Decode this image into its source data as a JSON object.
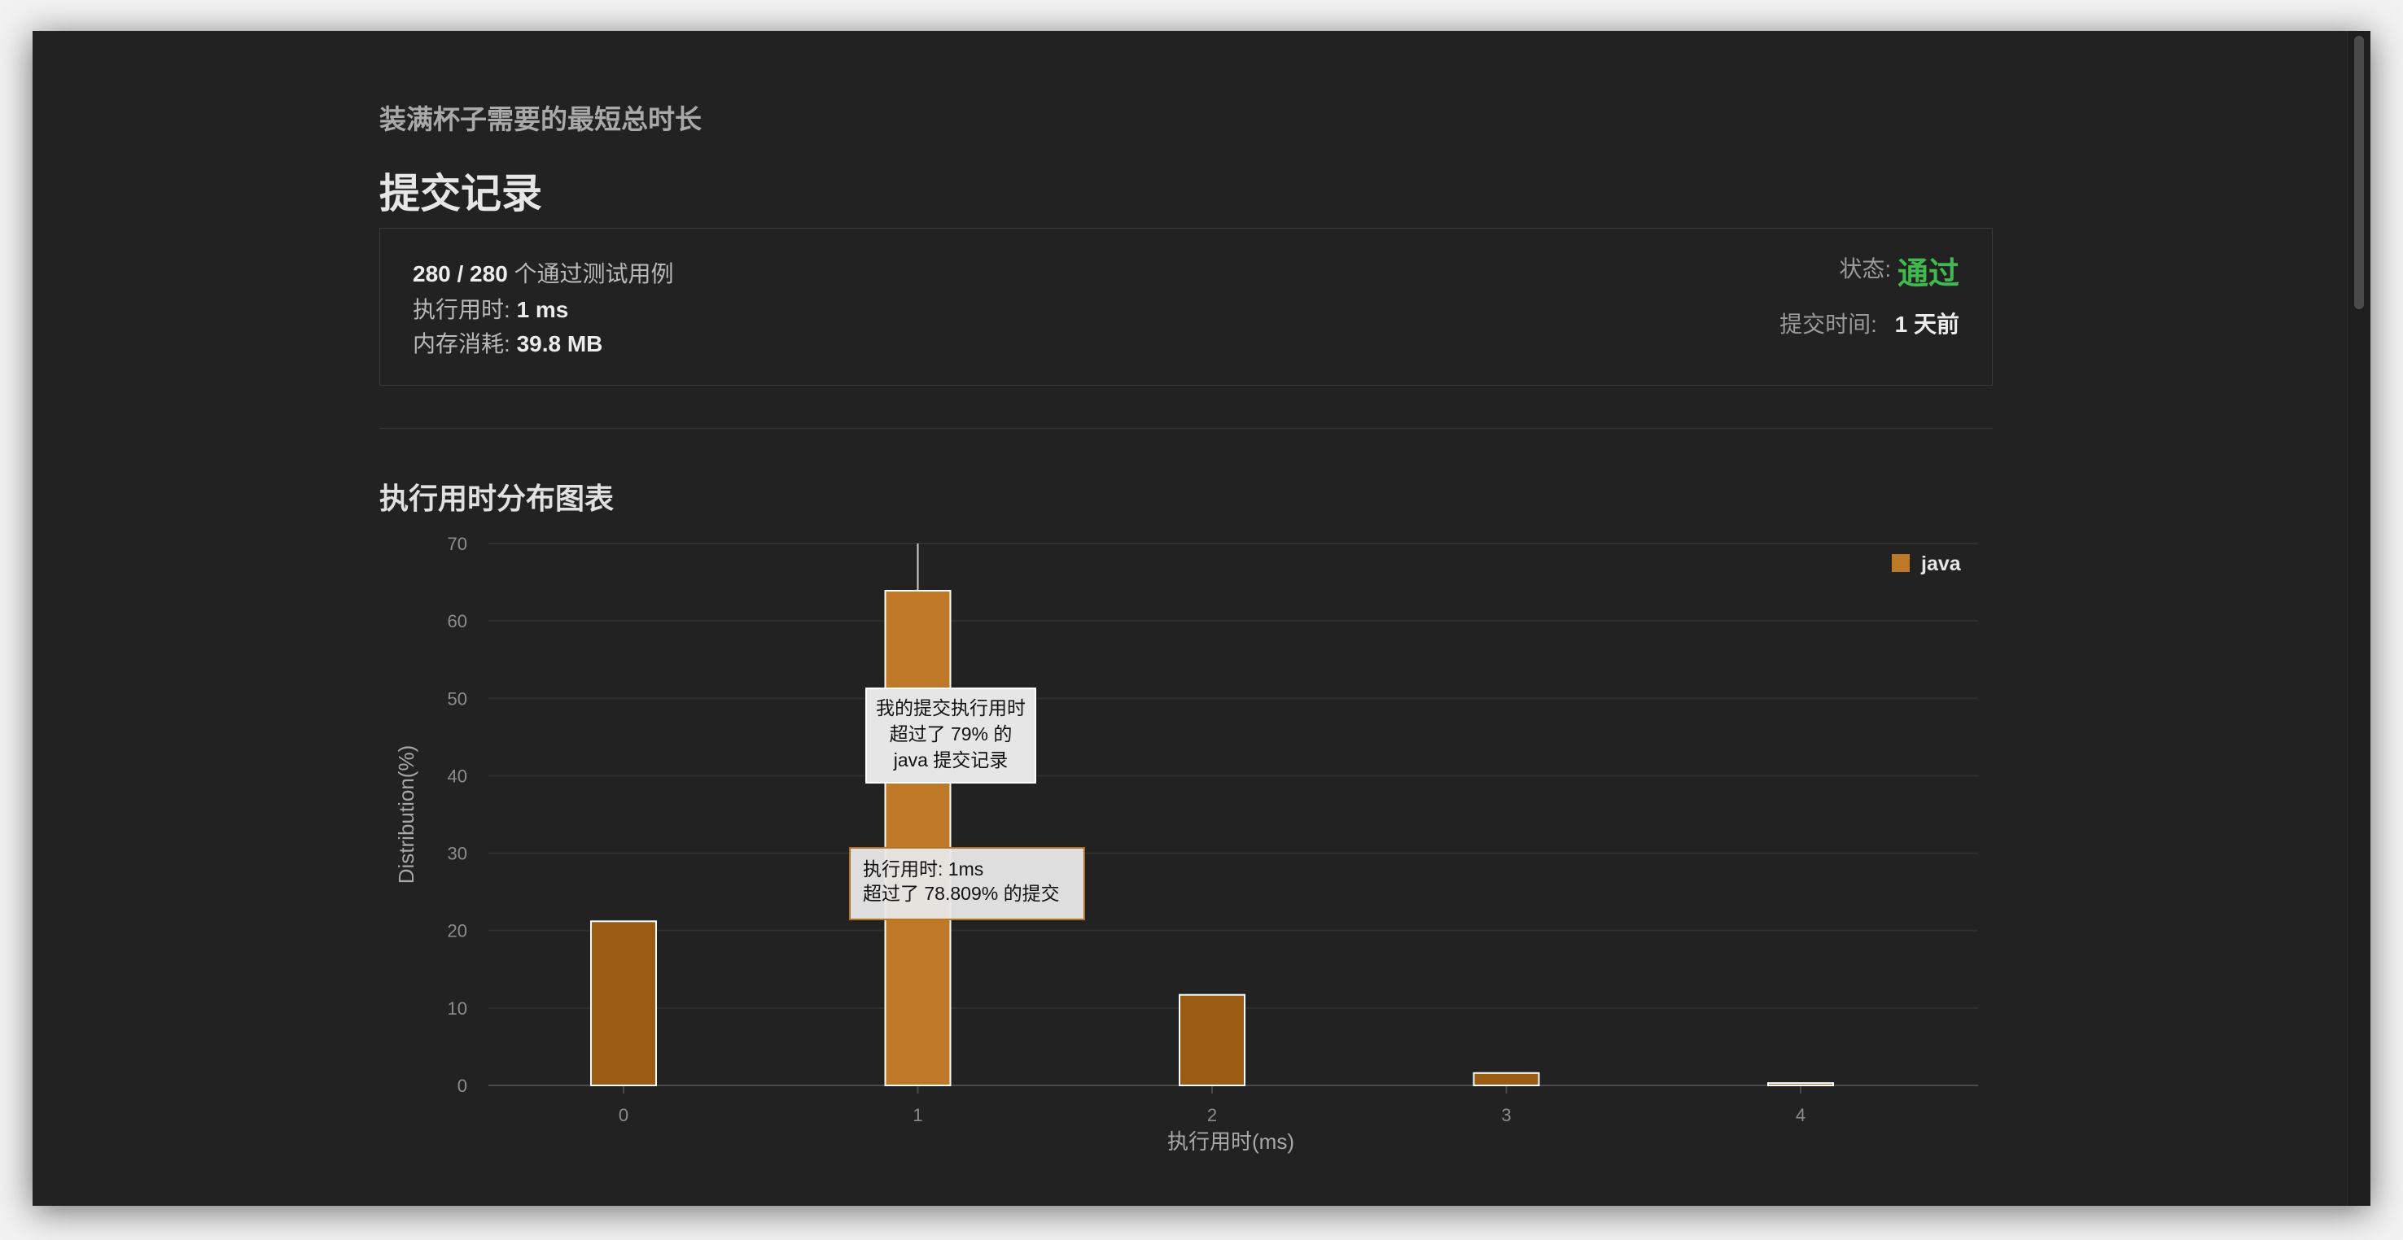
{
  "problem_title": "装满杯子需要的最短总时长",
  "page_title": "提交记录",
  "summary": {
    "passed": "280 / 280",
    "passed_suffix": " 个通过测试用例",
    "runtime_label": "执行用时: ",
    "runtime_value": "1 ms",
    "memory_label": "内存消耗: ",
    "memory_value": "39.8 MB",
    "status_label": "状态: ",
    "status_value": "通过",
    "submit_time_label": "提交时间: ",
    "submit_time_value": "1 天前"
  },
  "colors": {
    "accent_green": "#3fb950",
    "bar": "#9a5b13",
    "bar_highlight": "#bf7826"
  },
  "chart_data": {
    "type": "bar",
    "title": "执行用时分布图表",
    "xlabel": "执行用时(ms)",
    "ylabel": "Distribution(%)",
    "categories": [
      "0",
      "1",
      "2",
      "3",
      "4"
    ],
    "series": [
      {
        "name": "java",
        "values": [
          21.2,
          63.9,
          11.7,
          1.6,
          0.3
        ]
      }
    ],
    "ylim": [
      0,
      70
    ],
    "yticks": [
      0,
      10,
      20,
      30,
      40,
      50,
      60,
      70
    ],
    "grid": true,
    "legend": "top-right",
    "highlight_category": "1",
    "annotations": {
      "beat_tooltip": [
        "我的提交执行用时",
        "超过了 79% 的",
        "java 提交记录"
      ],
      "hover_tooltip": [
        "执行用时: 1ms",
        "超过了 78.809% 的提交"
      ]
    }
  }
}
